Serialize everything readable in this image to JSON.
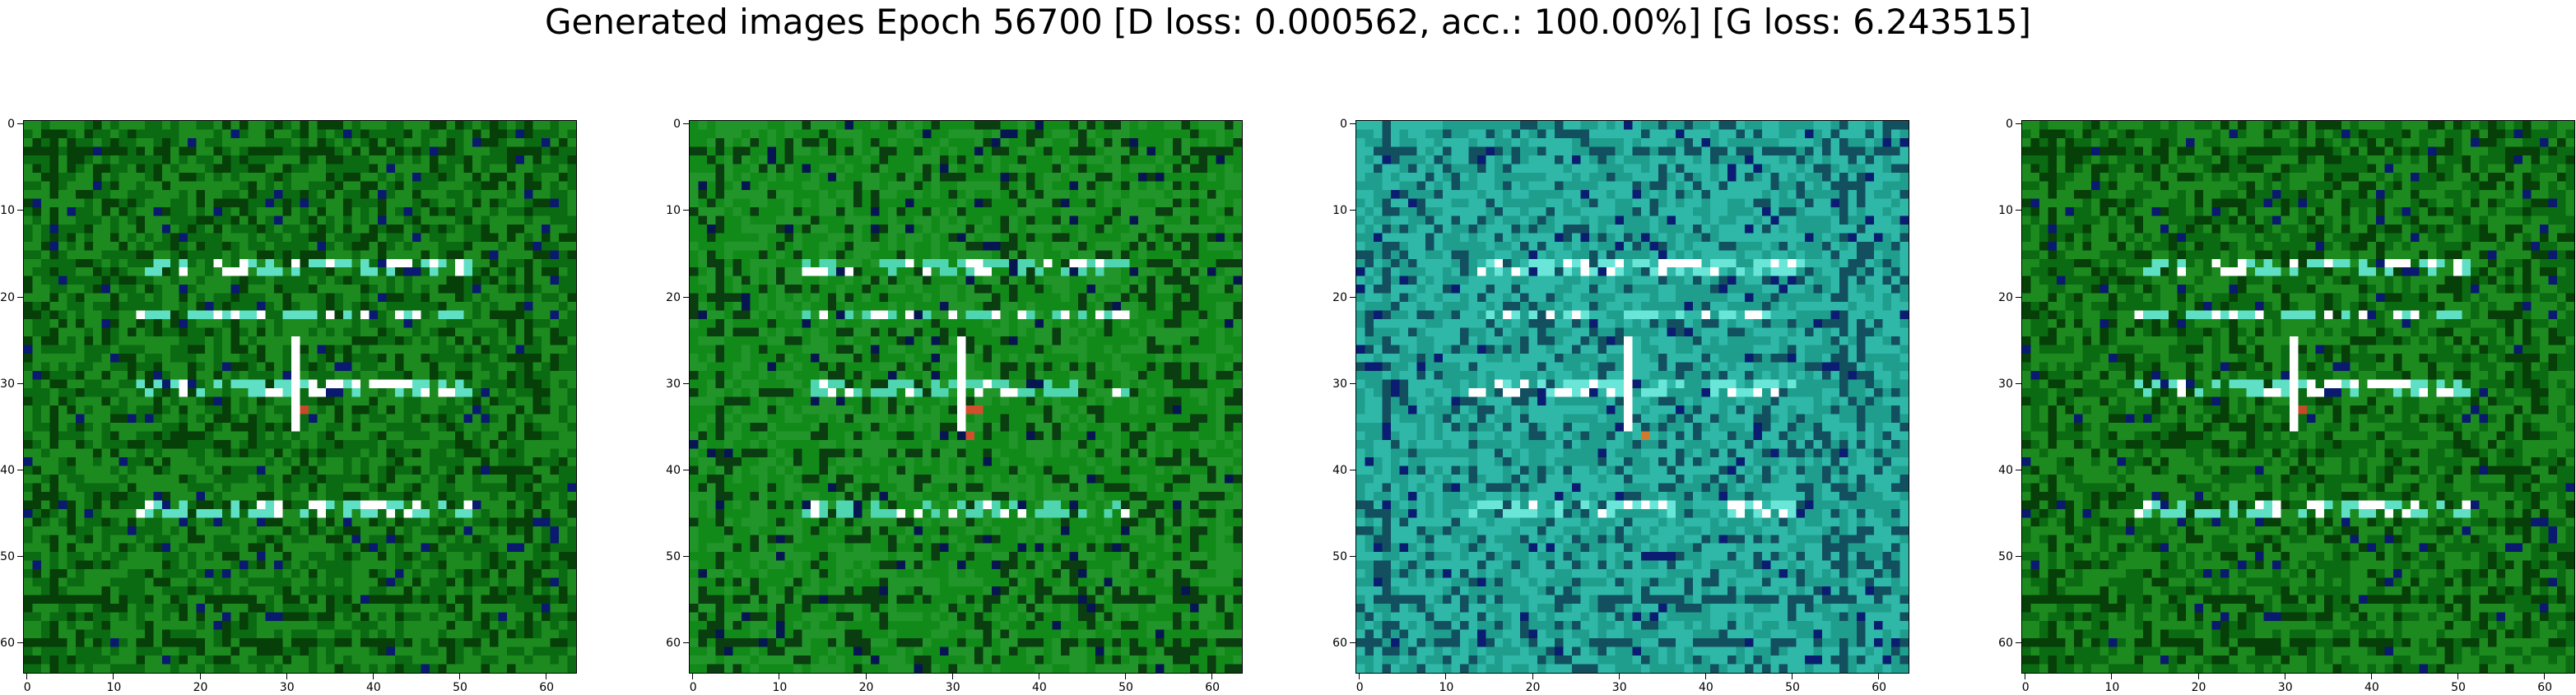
{
  "title": "Generated images Epoch 56700 [D loss: 0.000562, acc.: 100.00%] [G loss: 6.243515]",
  "chart_data": [
    {
      "type": "heatmap",
      "content": "generated 64x64 RGB image, dark green background with bright cyan/white horizontal streaks",
      "palette": [
        "#0b6b12",
        "#1d8a1f",
        "#063f08",
        "#5fe0c4",
        "#ffffff",
        "#0a1a6e",
        "#c44a2a"
      ],
      "xlim": [
        -0.5,
        63.5
      ],
      "ylim": [
        63.5,
        -0.5
      ],
      "xticks": [
        0,
        10,
        20,
        30,
        40,
        50,
        60
      ],
      "yticks": [
        0,
        10,
        20,
        30,
        40,
        50,
        60
      ]
    },
    {
      "type": "heatmap",
      "content": "generated 64x64 RGB image, mottled green with dark blue/black blocks and cyan highlights",
      "palette": [
        "#22952a",
        "#128a1a",
        "#0a3d10",
        "#4fd6b0",
        "#ffffff",
        "#061650",
        "#d0502e"
      ],
      "xlim": [
        -0.5,
        63.5
      ],
      "ylim": [
        63.5,
        -0.5
      ],
      "xticks": [
        0,
        10,
        20,
        30,
        40,
        50,
        60
      ],
      "yticks": [
        0,
        10,
        20,
        30,
        40,
        50,
        60
      ]
    },
    {
      "type": "heatmap",
      "content": "generated 64x64 RGB image, teal/cyan with dark blue blocks",
      "palette": [
        "#1f9e8e",
        "#2fb8a8",
        "#13505f",
        "#6ae6d8",
        "#ffffff",
        "#0b1d70",
        "#d07a2e"
      ],
      "xlim": [
        -0.5,
        63.5
      ],
      "ylim": [
        63.5,
        -0.5
      ],
      "xticks": [
        0,
        10,
        20,
        30,
        40,
        50,
        60
      ],
      "yticks": [
        0,
        10,
        20,
        30,
        40,
        50,
        60
      ]
    },
    {
      "type": "heatmap",
      "content": "generated 64x64 RGB image, dark green background with bright cyan/white horizontal streaks",
      "palette": [
        "#0b6b12",
        "#1d8a1f",
        "#063f08",
        "#5fe0c4",
        "#ffffff",
        "#0a1a6e",
        "#c44a2a"
      ],
      "xlim": [
        -0.5,
        63.5
      ],
      "ylim": [
        63.5,
        -0.5
      ],
      "xticks": [
        0,
        10,
        20,
        30,
        40,
        50,
        60
      ],
      "yticks": [
        0,
        10,
        20,
        30,
        40,
        50,
        60
      ]
    }
  ]
}
